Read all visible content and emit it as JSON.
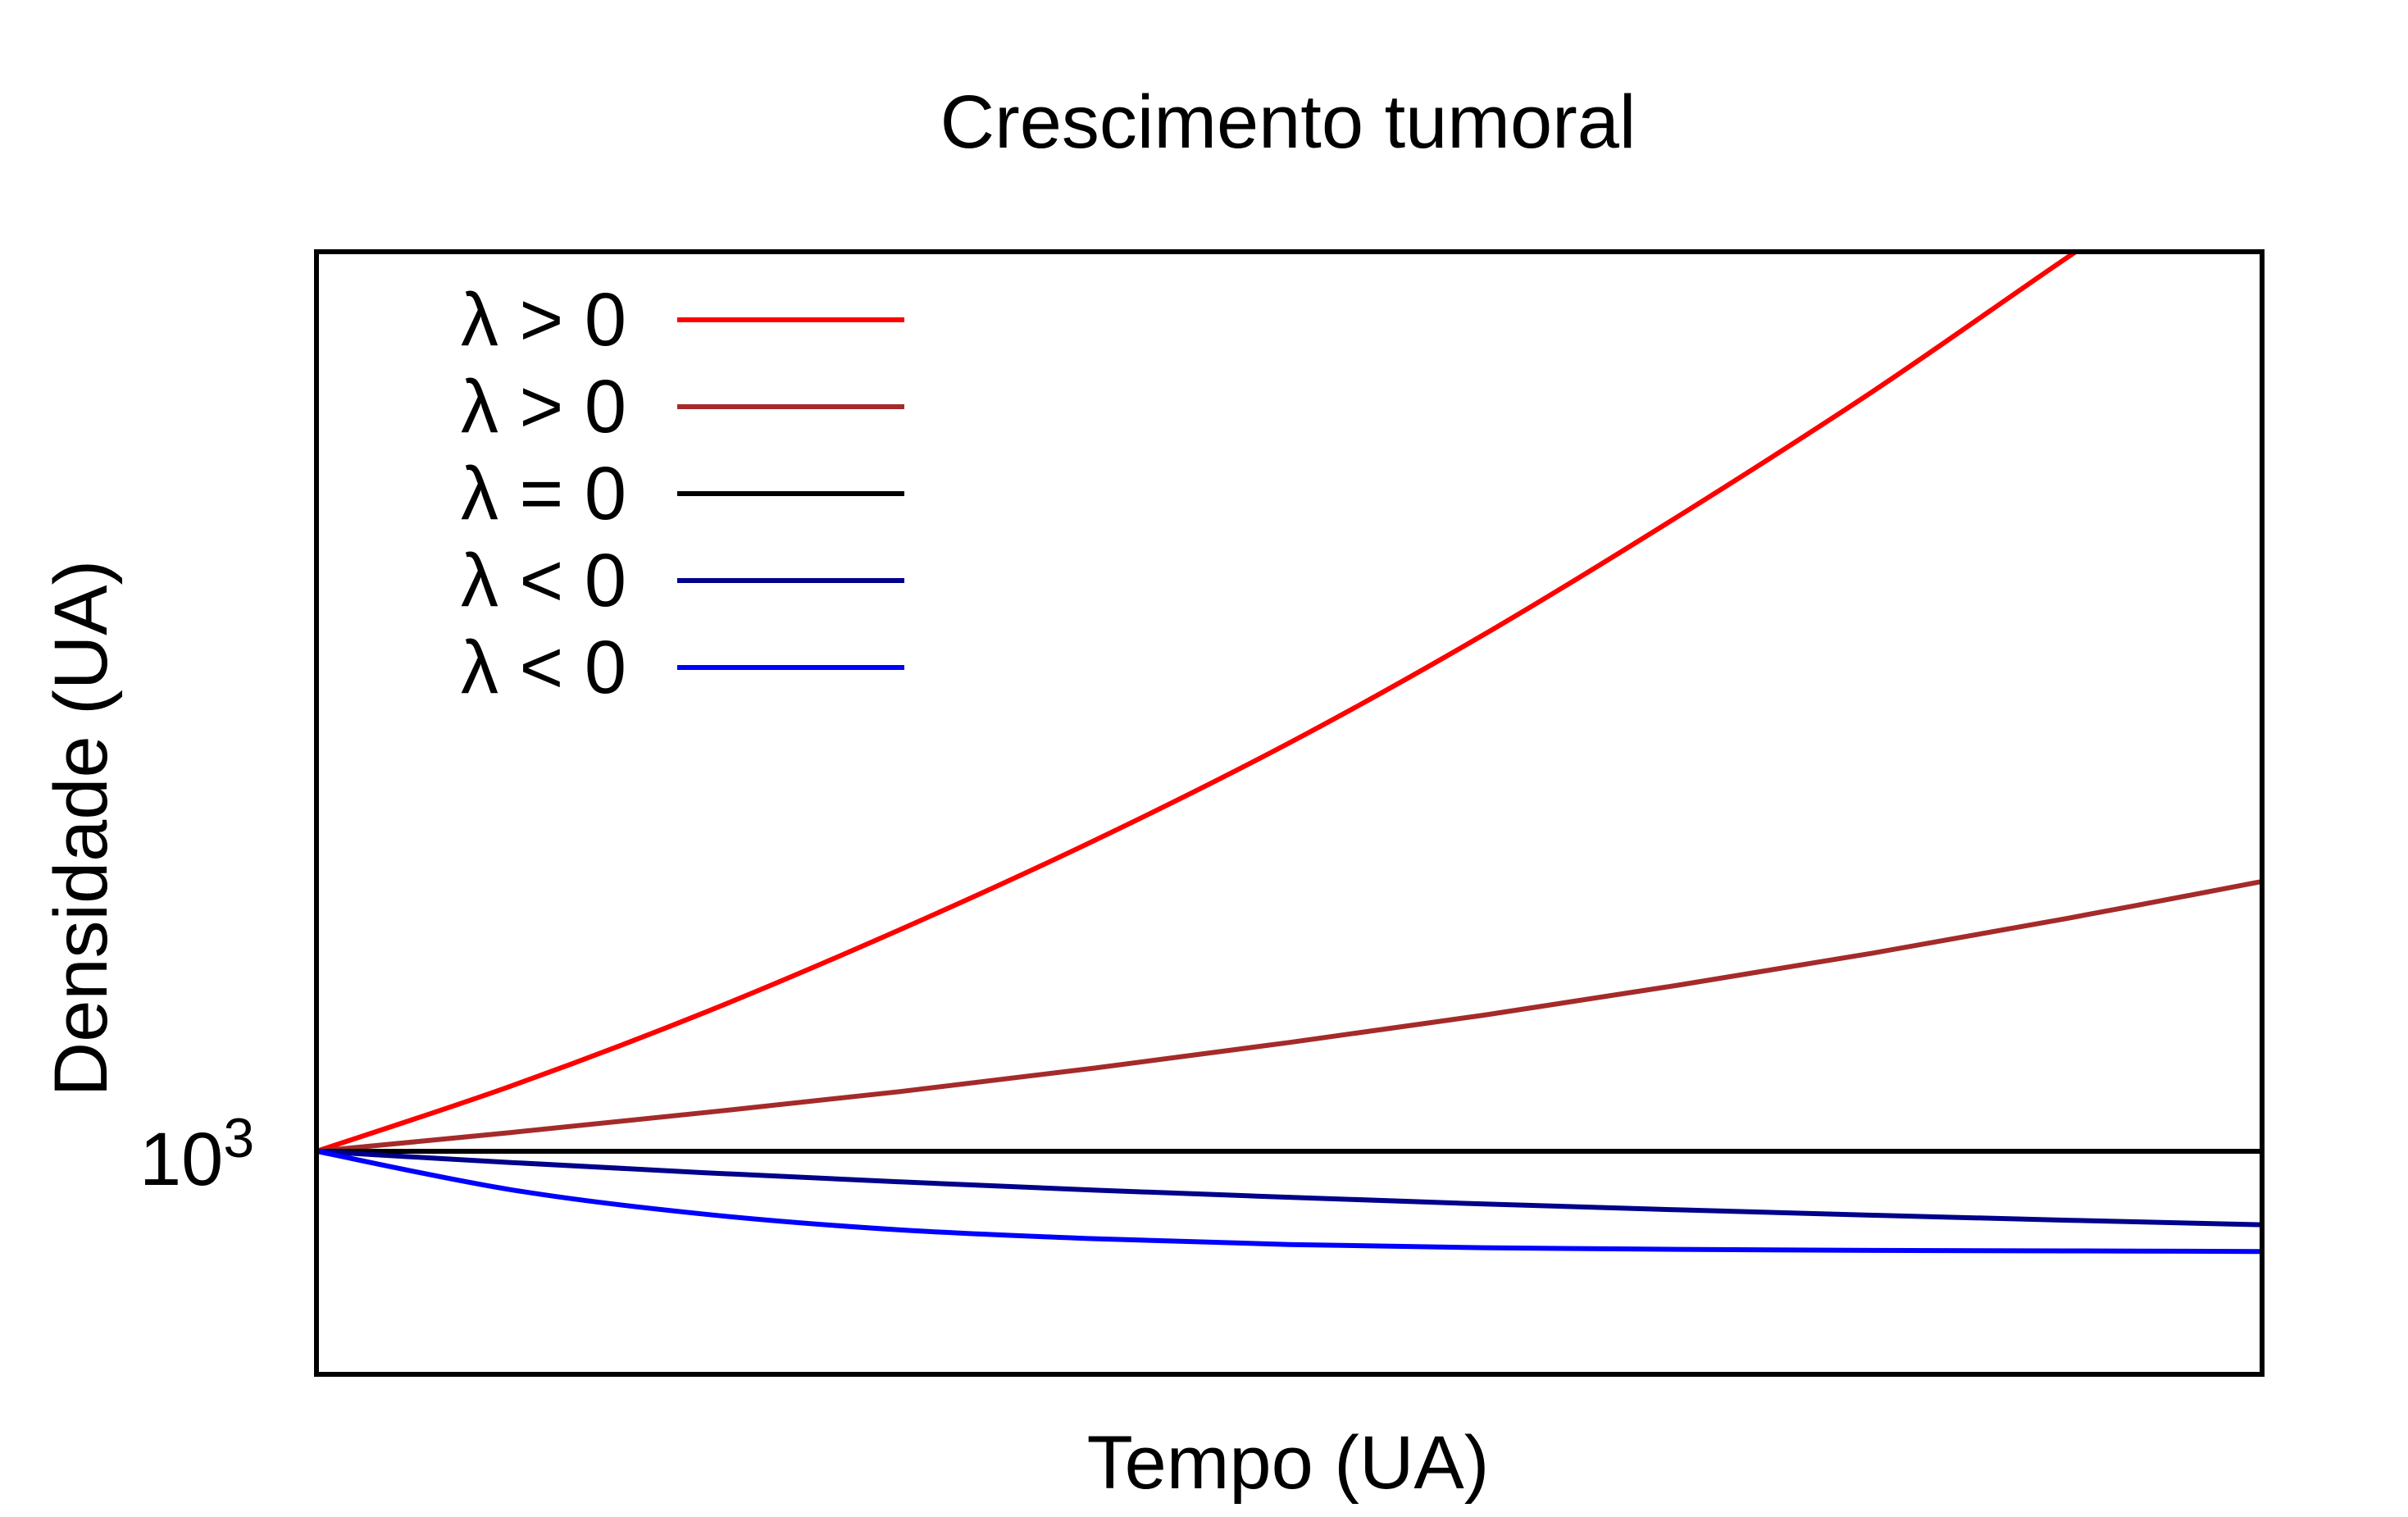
{
  "chart_data": {
    "type": "line",
    "title": "Crescimento tumoral",
    "xlabel": "Tempo (UA)",
    "ylabel": "Densidade (UA)",
    "ytick": {
      "base": "10",
      "exponent": "3"
    },
    "scale": {
      "y": "log"
    },
    "legend_placement": "top-left",
    "grid": false,
    "x": [
      0,
      1,
      2,
      3,
      4,
      5,
      6,
      7,
      8,
      9,
      10
    ],
    "series": [
      {
        "name": "λ > 0",
        "color": "#ff0000",
        "values": [
          1000,
          1165,
          1385,
          1680,
          2070,
          2600,
          3350,
          4420,
          5920,
          8100,
          11000
        ]
      },
      {
        "name": "λ > 0",
        "color": "#a52a2a",
        "values": [
          1000,
          1045,
          1095,
          1150,
          1215,
          1290,
          1375,
          1475,
          1590,
          1725,
          1880
        ]
      },
      {
        "name": "λ = 0",
        "color": "#000000",
        "values": [
          1000,
          1000,
          1000,
          1000,
          1000,
          1000,
          1000,
          1000,
          1000,
          1000,
          1000
        ]
      },
      {
        "name": "λ < 0",
        "color": "#00008b",
        "values": [
          1000,
          974,
          951,
          931,
          913,
          898,
          884,
          872,
          861,
          851,
          842
        ]
      },
      {
        "name": "λ < 0",
        "color": "#0000ff",
        "values": [
          1000,
          914,
          863,
          832,
          815,
          804,
          798,
          795,
          793,
          792,
          791
        ]
      }
    ]
  }
}
